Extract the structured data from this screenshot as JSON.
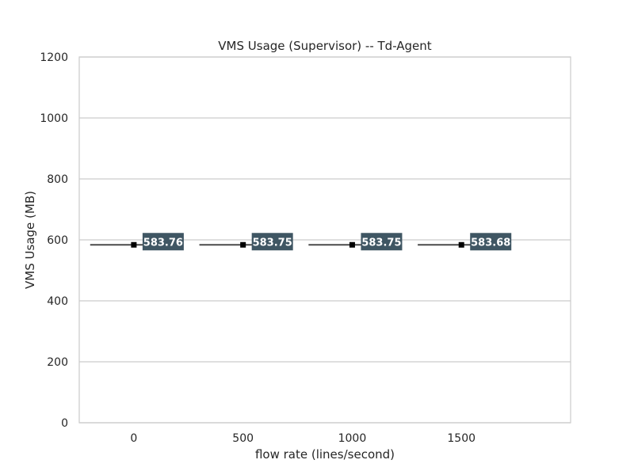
{
  "chart_data": {
    "type": "box",
    "title": "VMS Usage (Supervisor) -- Td-Agent",
    "xlabel": "flow rate (lines/second)",
    "ylabel": "VMS Usage (MB)",
    "categories": [
      "0",
      "500",
      "1000",
      "1500"
    ],
    "values": [
      583.76,
      583.75,
      583.75,
      583.68
    ],
    "data_labels": [
      "583.76",
      "583.75",
      "583.75",
      "583.68"
    ],
    "ylim": [
      0,
      1200
    ],
    "yticks": [
      0,
      200,
      400,
      600,
      800,
      1000,
      1200
    ],
    "grid": true,
    "legend": "none"
  },
  "colors": {
    "label_bg": "#3f5663",
    "label_text": "#ffffff",
    "grid": "#cccccc",
    "frame": "#cccccc",
    "box_line": "#4a4a4a",
    "mean_marker": "#000000"
  }
}
